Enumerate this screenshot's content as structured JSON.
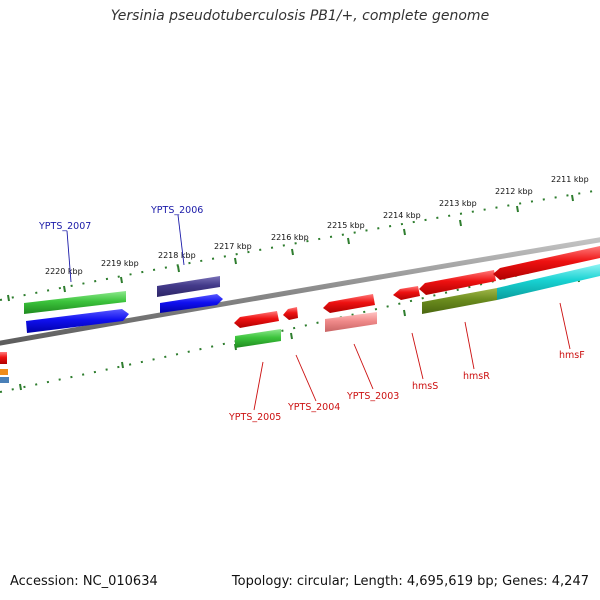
{
  "title": "Yersinia pseudotuberculosis PB1/+, complete genome",
  "footer": {
    "accession": "Accession: NC_010634",
    "topology": "Topology: circular; Length: 4,695,619 bp; Genes: 4,247"
  },
  "colors": {
    "backbone": "#888888",
    "tick": "#2e7d2e",
    "label_blue": "#1a1aa8",
    "label_red": "#cc1111"
  },
  "kbp_labels": {
    "k2220": "2220 kbp",
    "k2219": "2219 kbp",
    "k2218": "2218 kbp",
    "k2217": "2217 kbp",
    "k2216": "2216 kbp",
    "k2215": "2215 kbp",
    "k2214": "2214 kbp",
    "k2213": "2213 kbp",
    "k2212": "2212 kbp",
    "k2211": "2211 kbp"
  },
  "gene_labels": {
    "ypts_2007": "YPTS_2007",
    "ypts_2006": "YPTS_2006",
    "ypts_2005": "YPTS_2005",
    "ypts_2004": "YPTS_2004",
    "ypts_2003": "YPTS_2003",
    "hmss": "hmsS",
    "hmsr": "hmsR",
    "hmsf": "hmsF"
  }
}
